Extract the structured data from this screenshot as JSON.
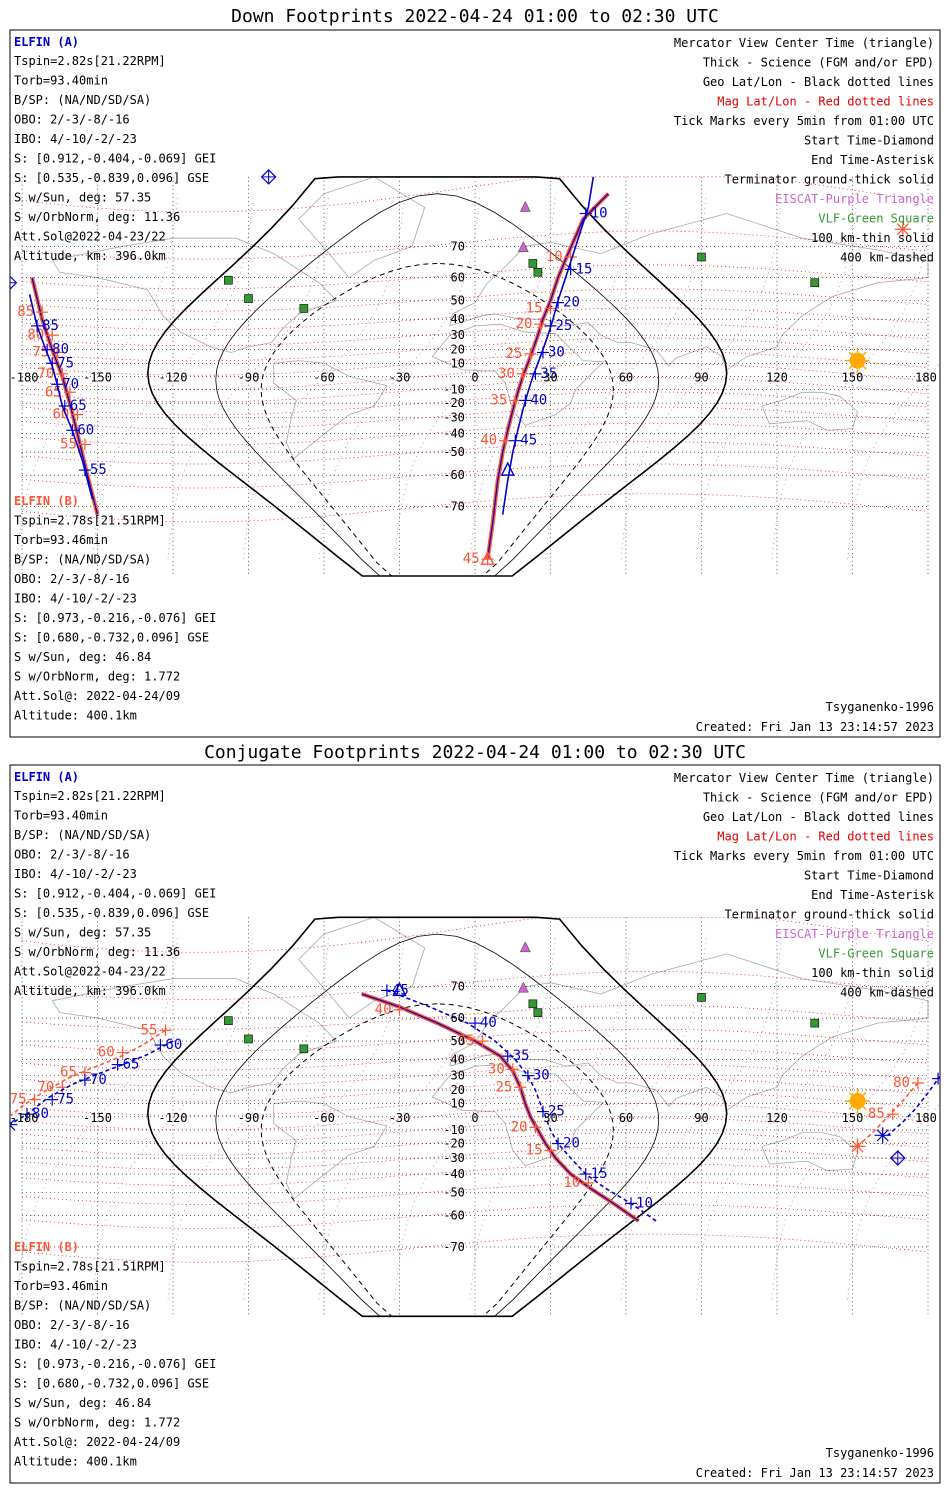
{
  "colors": {
    "elfin_a": "#0000cc",
    "elfin_b": "#ff5533",
    "geo_grid": "#000000",
    "mag_grid": "#e00000",
    "eiscat": "#cc66cc",
    "vlf": "#339933",
    "coast": "#a8a8a8",
    "sun": "#ffaa00",
    "terminator": "#000000"
  },
  "axes": {
    "lon_ticks": [
      -180,
      -150,
      -120,
      -90,
      -60,
      -30,
      0,
      30,
      60,
      90,
      120,
      150,
      180
    ],
    "lon_tick_labels": [
      "-180",
      "-150",
      "-120",
      "-90",
      "-60",
      "-30",
      "0",
      "30",
      "60",
      "90",
      "120",
      "150",
      "180"
    ],
    "lat_ticks": [
      70,
      60,
      50,
      40,
      30,
      20,
      10,
      0,
      -10,
      -20,
      -30,
      -40,
      -50,
      -60,
      -70
    ],
    "lat_tick_labels": [
      "70",
      "60",
      "50",
      "40",
      "30",
      "20",
      "10",
      "",
      "-10",
      "-20",
      "-30",
      "-40",
      "-50",
      "-60",
      "-70"
    ],
    "lon_range": [
      -180,
      180
    ],
    "lat_range": [
      -80,
      80
    ],
    "grid": true
  },
  "legend": [
    {
      "text": "Mercator View Center Time (triangle)",
      "color": "#000000"
    },
    {
      "text": "Thick - Science (FGM and/or EPD)",
      "color": "#000000"
    },
    {
      "text": "Geo Lat/Lon - Black dotted lines",
      "color": "#000000"
    },
    {
      "text": "Mag Lat/Lon - Red dotted lines",
      "color": "#e00000"
    },
    {
      "text": "Tick Marks every 5min from 01:00 UTC",
      "color": "#000000"
    },
    {
      "text": "Start Time-Diamond",
      "color": "#000000"
    },
    {
      "text": "End Time-Asterisk",
      "color": "#000000"
    },
    {
      "text": "Terminator ground-thick solid",
      "color": "#000000"
    },
    {
      "text": "EISCAT-Purple Triangle",
      "color": "#cc66cc"
    },
    {
      "text": "VLF-Green Square",
      "color": "#339933"
    },
    {
      "text": "100 km-thin solid",
      "color": "#000000"
    },
    {
      "text": "400 km-dashed",
      "color": "#000000"
    }
  ],
  "model_label": "Tsyganenko-1996",
  "created_label": "Created: Fri Jan 13 23:14:57 2023",
  "elfin_a_info": {
    "name": "ELFIN (A)",
    "lines": [
      "Tspin=2.82s[21.22RPM]",
      "Torb=93.40min",
      "B/SP: (NA/ND/SD/SA)",
      "OBO: 2/-3/-8/-16",
      "IBO: 4/-10/-2/-23",
      "S: [0.912,-0.404,-0.069] GEI",
      "S: [0.535,-0.839,0.096] GSE",
      "S w/Sun, deg: 57.35",
      "S w/OrbNorm, deg: 11.36",
      "Att.Sol@2022-04-23/22",
      "Altitude, km: 396.0km"
    ]
  },
  "elfin_b_info": {
    "name": "ELFIN (B)",
    "lines": [
      "Tspin=2.78s[21.51RPM]",
      "Torb=93.46min",
      "B/SP: (NA/ND/SD/SA)",
      "OBO: 2/-3/-8/-16",
      "IBO: 4/-10/-2/-23",
      "S: [0.973,-0.216,-0.076] GEI",
      "S: [0.680,-0.732,0.096] GSE",
      "S w/Sun, deg: 46.84",
      "S w/OrbNorm, deg: 1.772",
      "Att.Sol@: 2022-04-24/09",
      "Altitude: 400.1km"
    ]
  },
  "eiscat_sites": [
    [
      20,
      78
    ],
    [
      19.2,
      69.6
    ]
  ],
  "vlf_sites": [
    [
      -98,
      59
    ],
    [
      -68,
      46
    ],
    [
      -90,
      51
    ],
    [
      23,
      65
    ],
    [
      25,
      62
    ],
    [
      90,
      67
    ],
    [
      135,
      58
    ]
  ],
  "sun": [
    152,
    12
  ],
  "panels": [
    {
      "title": "Down Footprints 2022-04-24 01:00 to 02:30 UTC",
      "tracks": [
        {
          "sat": "b",
          "science": true,
          "points": [
            [
              -176,
              60
            ],
            [
              -172,
              40
            ],
            [
              -168,
              20
            ],
            [
              -164,
              0
            ],
            [
              -161,
              -20
            ],
            [
              -158,
              -40
            ],
            [
              -154,
              -60
            ],
            [
              -150,
              -72
            ]
          ],
          "ticks": [
            [
              -172,
              44,
              "85"
            ],
            [
              -168,
              30,
              "80"
            ],
            [
              -166,
              18,
              "75"
            ],
            [
              -164,
              2,
              "70"
            ],
            [
              -161,
              -12,
              "65"
            ],
            [
              -158,
              -28,
              "60"
            ],
            [
              -155,
              -46,
              "55"
            ]
          ]
        },
        {
          "sat": "a",
          "science": false,
          "points": [
            [
              -177,
              53
            ],
            [
              -174,
              36
            ],
            [
              -171,
              22
            ],
            [
              -168,
              8
            ],
            [
              -166,
              -6
            ],
            [
              -164,
              -22
            ],
            [
              -160,
              -38
            ],
            [
              -156,
              -54
            ],
            [
              -152,
              -68
            ]
          ],
          "ticks": [
            [
              -174,
              36,
              "85"
            ],
            [
              -170,
              20,
              "80"
            ],
            [
              -168,
              10,
              "75"
            ],
            [
              -166,
              -6,
              "70"
            ],
            [
              -163,
              -22,
              "65"
            ],
            [
              -160,
              -38,
              "60"
            ],
            [
              -155,
              -58,
              "55"
            ]
          ]
        },
        {
          "sat": "b",
          "science": true,
          "points": [
            [
              53,
              80
            ],
            [
              43,
              76
            ],
            [
              37,
              68
            ],
            [
              33,
              60
            ],
            [
              30,
              50
            ],
            [
              27,
              40
            ],
            [
              25,
              30
            ],
            [
              23,
              20
            ],
            [
              21,
              10
            ],
            [
              19,
              0
            ],
            [
              17,
              -12
            ],
            [
              15,
              -25
            ],
            [
              13,
              -38
            ],
            [
              11,
              -50
            ],
            [
              9,
              -62
            ],
            [
              7,
              -74
            ],
            [
              5,
              -80
            ]
          ],
          "ticks": [
            [
              38,
              67,
              "10"
            ],
            [
              30,
              46,
              "15"
            ],
            [
              26,
              37,
              "20"
            ],
            [
              22,
              17,
              "25"
            ],
            [
              19,
              2,
              "30"
            ],
            [
              16,
              -18,
              "35"
            ],
            [
              12,
              -44,
              "40"
            ],
            [
              5,
              -80,
              "45"
            ]
          ]
        },
        {
          "sat": "a",
          "science": false,
          "points": [
            [
              47,
              84
            ],
            [
              45,
              78
            ],
            [
              40,
              70
            ],
            [
              36,
              60
            ],
            [
              33,
              50
            ],
            [
              31,
              40
            ],
            [
              29,
              30
            ],
            [
              27,
              20
            ],
            [
              25,
              10
            ],
            [
              23,
              0
            ],
            [
              21,
              -12
            ],
            [
              19,
              -25
            ],
            [
              17,
              -38
            ],
            [
              15,
              -50
            ],
            [
              13,
              -62
            ],
            [
              11,
              -72
            ]
          ],
          "ticks": [
            [
              44,
              77,
              "10"
            ],
            [
              38,
              63,
              "15"
            ],
            [
              33,
              49,
              "20"
            ],
            [
              30,
              36,
              "25"
            ],
            [
              27,
              18,
              "30"
            ],
            [
              24,
              2,
              "35"
            ],
            [
              20,
              -18,
              "40"
            ],
            [
              16,
              -44,
              "45"
            ]
          ]
        }
      ],
      "start_markers": [
        [
          -185,
          58,
          "a"
        ],
        [
          -82,
          82,
          "a"
        ]
      ],
      "end_markers": [
        [
          -190,
          52,
          "a"
        ],
        [
          170,
          74,
          "b"
        ]
      ],
      "center_markers": [
        [
          13,
          -58,
          "a"
        ],
        [
          5,
          -80,
          "b"
        ]
      ]
    },
    {
      "title": "Conjugate Footprints 2022-04-24 01:00 to 02:30 UTC",
      "tracks": [
        {
          "sat": "b",
          "science": false,
          "points": [
            [
              -123,
              55
            ],
            [
              -132,
              48
            ],
            [
              -142,
              41
            ],
            [
              -152,
              35
            ],
            [
              -162,
              28
            ],
            [
              -172,
              18
            ],
            [
              -180,
              8
            ],
            [
              -185,
              0
            ]
          ],
          "ticks": [
            [
              -123,
              55,
              "55"
            ],
            [
              -140,
              44,
              "60"
            ],
            [
              -155,
              32,
              "65"
            ],
            [
              -164,
              22,
              "70"
            ],
            [
              -175,
              13,
              "75"
            ]
          ]
        },
        {
          "sat": "a",
          "science": false,
          "points": [
            [
              -120,
              50
            ],
            [
              -130,
              43
            ],
            [
              -140,
              37
            ],
            [
              -150,
              31
            ],
            [
              -160,
              24
            ],
            [
              -170,
              14
            ],
            [
              -178,
              2
            ],
            [
              -185,
              -6
            ]
          ],
          "ticks": [
            [
              -125,
              48,
              "60"
            ],
            [
              -142,
              37,
              "65"
            ],
            [
              -155,
              27,
              "70"
            ],
            [
              -168,
              13,
              "75"
            ],
            [
              -178,
              2,
              "80"
            ]
          ]
        },
        {
          "sat": "b",
          "science": true,
          "points": [
            [
              -45,
              68
            ],
            [
              -30,
              64
            ],
            [
              -15,
              58
            ],
            [
              0,
              50
            ],
            [
              10,
              42
            ],
            [
              15,
              33
            ],
            [
              18,
              22
            ],
            [
              20,
              10
            ],
            [
              22,
              0
            ],
            [
              25,
              -10
            ],
            [
              28,
              -20
            ],
            [
              32,
              -30
            ],
            [
              38,
              -40
            ],
            [
              46,
              -48
            ],
            [
              55,
              -55
            ],
            [
              65,
              -62
            ]
          ],
          "ticks": [
            [
              -30,
              63,
              "40"
            ],
            [
              3,
              50,
              "35"
            ],
            [
              15,
              34,
              "30"
            ],
            [
              18,
              22,
              "25"
            ],
            [
              24,
              -8,
              "20"
            ],
            [
              30,
              -25,
              "15"
            ],
            [
              45,
              -45,
              "10"
            ]
          ]
        },
        {
          "sat": "a",
          "science": false,
          "points": [
            [
              -35,
              69
            ],
            [
              -18,
              64
            ],
            [
              -3,
              58
            ],
            [
              8,
              50
            ],
            [
              16,
              40
            ],
            [
              21,
              30
            ],
            [
              24,
              20
            ],
            [
              26,
              10
            ],
            [
              28,
              0
            ],
            [
              30,
              -10
            ],
            [
              33,
              -20
            ],
            [
              38,
              -30
            ],
            [
              44,
              -40
            ],
            [
              52,
              -48
            ],
            [
              62,
              -55
            ],
            [
              72,
              -62
            ]
          ],
          "ticks": [
            [
              -35,
              69,
              "45"
            ],
            [
              0,
              58,
              "40"
            ],
            [
              13,
              42,
              "35"
            ],
            [
              21,
              30,
              "30"
            ],
            [
              27,
              4,
              "25"
            ],
            [
              33,
              -20,
              "20"
            ],
            [
              44,
              -40,
              "15"
            ],
            [
              62,
              -55,
              "10"
            ]
          ]
        },
        {
          "sat": "b",
          "science": false,
          "points": [
            [
              176,
              25
            ],
            [
              170,
              12
            ],
            [
              164,
              0
            ],
            [
              158,
              -12
            ],
            [
              152,
              -22
            ]
          ],
          "ticks": [
            [
              176,
              25,
              "80"
            ],
            [
              166,
              2,
              "85"
            ]
          ]
        },
        {
          "sat": "a",
          "science": false,
          "points": [
            [
              185,
              30
            ],
            [
              180,
              18
            ],
            [
              175,
              6
            ],
            [
              170,
              -4
            ],
            [
              164,
              -14
            ]
          ],
          "ticks": [
            [
              184,
              28,
              "85"
            ]
          ]
        }
      ],
      "start_markers": [
        [
          168,
          -30,
          "a"
        ]
      ],
      "end_markers": [
        [
          162,
          -14,
          "a"
        ],
        [
          152,
          -22,
          "b"
        ],
        [
          -185,
          -6,
          "a"
        ]
      ],
      "center_markers": [
        [
          -30,
          69,
          "a"
        ]
      ]
    }
  ]
}
